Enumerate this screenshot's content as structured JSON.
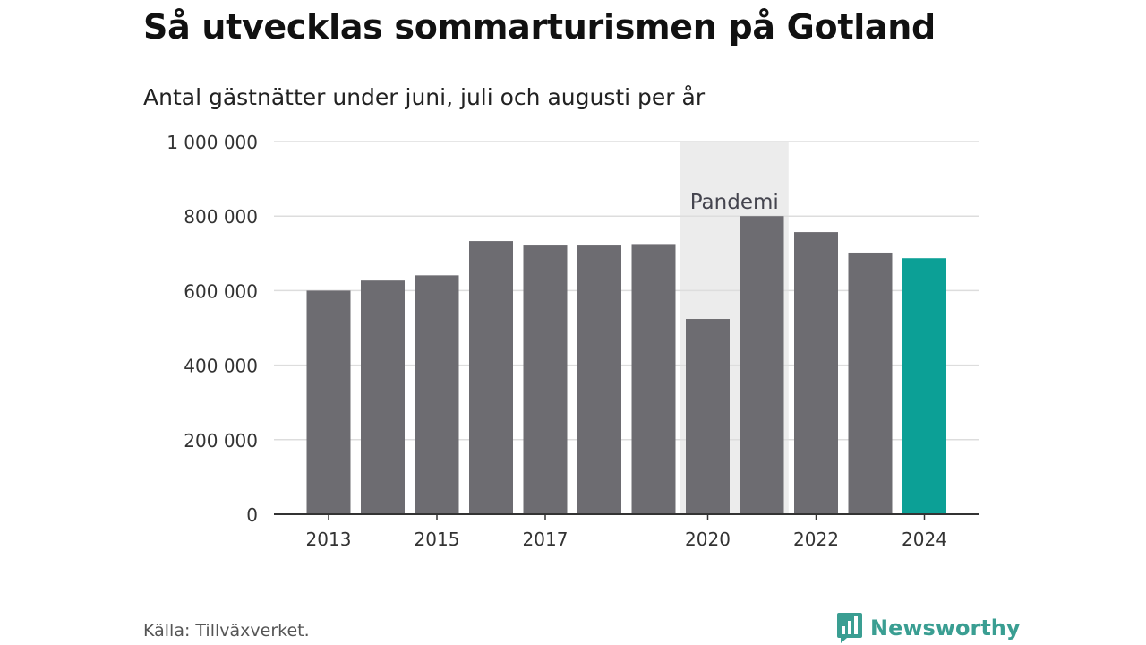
{
  "title": "Så utvecklas sommarturismen på Gotland",
  "subtitle": "Antal gästnätter under juni, juli och augusti per år",
  "source": "Källa: Tillväxverket.",
  "brand": {
    "name": "Newsworthy",
    "icon": "newsworthy-logo-icon"
  },
  "colors": {
    "bar": "#6d6c71",
    "highlight": "#0ca096",
    "shade": "#ececec",
    "grid": "#dddddd",
    "axis": "#333333",
    "annotation": "#44444e"
  },
  "chart_data": {
    "type": "bar",
    "categories": [
      "2013",
      "2014",
      "2015",
      "2016",
      "2017",
      "2018",
      "2019",
      "2020",
      "2021",
      "2022",
      "2023",
      "2024"
    ],
    "values": [
      600000,
      627000,
      641000,
      733000,
      721000,
      721000,
      725000,
      524000,
      800000,
      757000,
      702000,
      687000
    ],
    "xtick_labels": [
      "2013",
      "",
      "2015",
      "",
      "2017",
      "",
      "",
      "2020",
      "",
      "2022",
      "",
      "2024"
    ],
    "yticks": [
      0,
      200000,
      400000,
      600000,
      800000,
      1000000
    ],
    "ytick_labels": [
      "0",
      "200 000",
      "400 000",
      "600 000",
      "800 000",
      "1 000 000"
    ],
    "ylim": [
      0,
      1000000
    ],
    "highlight_category": "2024",
    "shaded_range": {
      "from": "2020",
      "to": "2021",
      "label": "Pandemi"
    },
    "grid": true,
    "xlabel": "",
    "ylabel": ""
  }
}
